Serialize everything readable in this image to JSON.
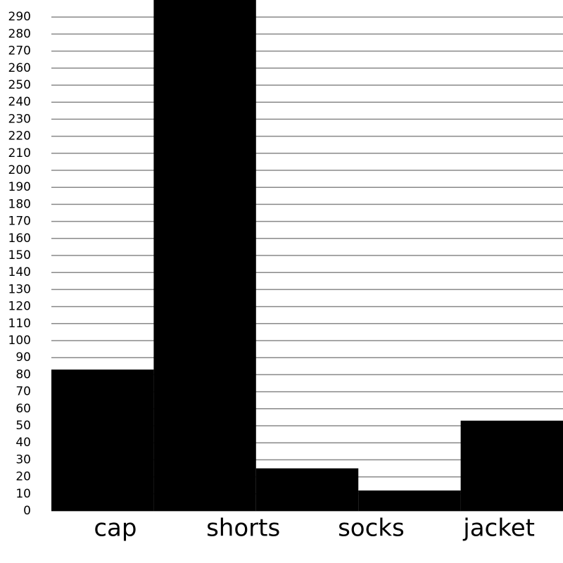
{
  "chart_data": {
    "type": "bar",
    "categories": [
      "cap",
      "shorts",
      "socks",
      null,
      "jacket"
    ],
    "values": [
      83,
      300,
      25,
      12,
      53
    ],
    "color": "#000000",
    "ylim": [
      0,
      300
    ],
    "yticks": [
      0,
      10,
      20,
      30,
      40,
      50,
      60,
      70,
      80,
      90,
      100,
      110,
      120,
      130,
      140,
      150,
      160,
      170,
      180,
      190,
      200,
      210,
      220,
      230,
      240,
      250,
      260,
      270,
      280,
      290
    ],
    "grid": true
  }
}
